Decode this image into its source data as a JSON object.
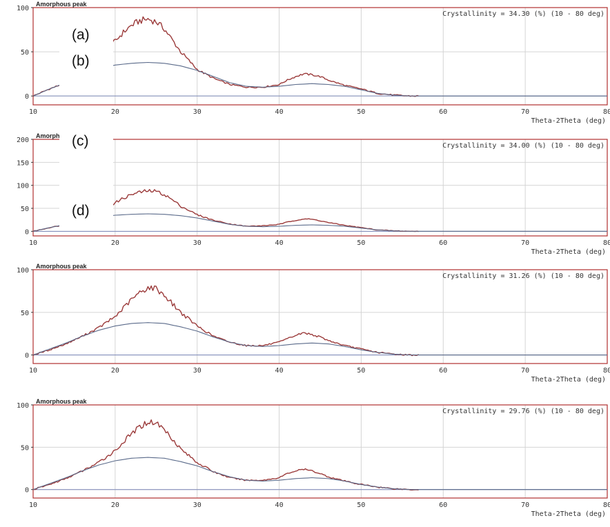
{
  "panel_labels": [
    "(a)",
    "(b)",
    "(c)",
    "(d)"
  ],
  "chart_data": [
    {
      "type": "line",
      "title": "Amorphous peak",
      "annotation": "Crystallinity = 34.30 (%) (10 - 80 deg)",
      "xlabel": "Theta-2Theta (deg)",
      "ylabel": "",
      "xlim": [
        10,
        80
      ],
      "ylim": [
        -10,
        100
      ],
      "x_ticks": [
        10,
        20,
        30,
        40,
        50,
        60,
        70,
        80
      ],
      "x_tick_labels": [
        "10",
        "20",
        "30",
        "40",
        "50",
        "60",
        "70",
        "80"
      ],
      "y_ticks": [
        0,
        50,
        100
      ],
      "grid": true,
      "colors": {
        "measured": "#9b3a3a",
        "fit": "#5a6a8a",
        "frame": "#b03030"
      },
      "series": [
        {
          "key": "measured",
          "x": [
            10,
            12,
            14,
            16,
            18,
            20,
            21,
            22,
            23,
            24,
            25,
            26,
            27,
            28,
            30,
            32,
            34,
            36,
            38,
            40,
            41,
            42,
            43,
            44,
            45,
            46,
            48,
            50,
            52,
            54,
            56,
            60,
            70,
            80
          ],
          "values": [
            0,
            8,
            15,
            28,
            45,
            62,
            72,
            80,
            85,
            87,
            84,
            76,
            63,
            50,
            30,
            20,
            13,
            10,
            10,
            13,
            18,
            22,
            25,
            24,
            22,
            18,
            12,
            8,
            3,
            1,
            0,
            0,
            0,
            0
          ]
        },
        {
          "key": "fit",
          "x": [
            10,
            12,
            14,
            16,
            18,
            20,
            22,
            24,
            26,
            28,
            30,
            32,
            34,
            36,
            38,
            40,
            42,
            44,
            46,
            48,
            50,
            52,
            54,
            56,
            60,
            70,
            80
          ],
          "values": [
            0,
            8,
            15,
            24,
            31,
            35,
            37,
            38,
            37,
            34,
            29,
            22,
            15,
            11,
            10,
            11,
            13,
            14,
            13,
            11,
            7,
            3,
            1,
            0,
            0,
            0,
            0
          ]
        }
      ]
    },
    {
      "type": "line",
      "title": "Amorphous peak",
      "annotation": "Crystallinity = 34.00 (%) (10 - 80 deg)",
      "xlabel": "Theta-2Theta (deg)",
      "ylabel": "",
      "xlim": [
        10,
        80
      ],
      "ylim": [
        -10,
        200
      ],
      "x_ticks": [
        10,
        20,
        30,
        40,
        50,
        60,
        70,
        80
      ],
      "x_tick_labels": [
        "10",
        "20",
        "30",
        "40",
        "50",
        "60",
        "70",
        "80"
      ],
      "y_ticks": [
        0,
        50,
        100,
        150,
        200
      ],
      "grid": true,
      "colors": {
        "measured": "#9b3a3a",
        "fit": "#5a6a8a",
        "frame": "#b03030"
      },
      "series": [
        {
          "key": "measured",
          "x": [
            10,
            12,
            14,
            16,
            18,
            20,
            21,
            22,
            23,
            24,
            25,
            26,
            27,
            28,
            30,
            32,
            34,
            36,
            38,
            40,
            41,
            42,
            43,
            44,
            45,
            46,
            48,
            50,
            52,
            54,
            56,
            60,
            70,
            80
          ],
          "values": [
            0,
            8,
            15,
            28,
            45,
            62,
            72,
            80,
            85,
            88,
            87,
            80,
            68,
            55,
            36,
            24,
            16,
            11,
            12,
            15,
            20,
            24,
            27,
            26,
            23,
            19,
            13,
            8,
            3,
            1,
            0,
            0,
            0,
            0
          ]
        },
        {
          "key": "fit",
          "x": [
            10,
            12,
            14,
            16,
            18,
            20,
            22,
            24,
            26,
            28,
            30,
            32,
            34,
            36,
            38,
            40,
            42,
            44,
            46,
            48,
            50,
            52,
            54,
            56,
            60,
            70,
            80
          ],
          "values": [
            0,
            8,
            15,
            24,
            31,
            35,
            37,
            38,
            37,
            34,
            29,
            22,
            15,
            11,
            10,
            11,
            13,
            14,
            13,
            11,
            7,
            3,
            1,
            0,
            0,
            0,
            0
          ]
        }
      ]
    },
    {
      "type": "line",
      "title": "Amorphous peak",
      "annotation": "Crystallinity = 31.26 (%) (10 - 80 deg)",
      "xlabel": "Theta-2Theta (deg)",
      "ylabel": "",
      "xlim": [
        10,
        80
      ],
      "ylim": [
        -10,
        100
      ],
      "x_ticks": [
        10,
        20,
        30,
        40,
        50,
        60,
        70,
        80
      ],
      "x_tick_labels": [
        "10",
        "20",
        "30",
        "40",
        "50",
        "60",
        "70",
        "80"
      ],
      "y_ticks": [
        0,
        50,
        100
      ],
      "grid": true,
      "colors": {
        "measured": "#9b3a3a",
        "fit": "#5a6a8a",
        "frame": "#b03030"
      },
      "series": [
        {
          "key": "measured",
          "x": [
            10,
            12,
            14,
            16,
            18,
            20,
            21,
            22,
            23,
            24,
            25,
            26,
            27,
            28,
            30,
            32,
            34,
            36,
            38,
            40,
            41,
            42,
            43,
            44,
            45,
            46,
            48,
            50,
            52,
            54,
            56,
            60,
            70,
            80
          ],
          "values": [
            0,
            6,
            13,
            22,
            32,
            45,
            55,
            65,
            73,
            79,
            78,
            70,
            60,
            50,
            34,
            22,
            15,
            11,
            11,
            15,
            19,
            23,
            26,
            24,
            21,
            17,
            11,
            7,
            3,
            1,
            0,
            0,
            0,
            0
          ]
        },
        {
          "key": "fit",
          "x": [
            10,
            12,
            14,
            16,
            18,
            20,
            22,
            24,
            26,
            28,
            30,
            32,
            34,
            36,
            38,
            40,
            42,
            44,
            46,
            48,
            50,
            52,
            54,
            56,
            60,
            70,
            80
          ],
          "values": [
            0,
            7,
            14,
            22,
            29,
            34,
            37,
            38,
            37,
            33,
            28,
            21,
            15,
            11,
            10,
            11,
            13,
            14,
            13,
            10,
            6,
            3,
            1,
            0,
            0,
            0,
            0
          ]
        }
      ]
    },
    {
      "type": "line",
      "title": "Amorphous peak",
      "annotation": "Crystallinity = 29.76 (%) (10 - 80 deg)",
      "xlabel": "Theta-2Theta (deg)",
      "ylabel": "",
      "xlim": [
        10,
        80
      ],
      "ylim": [
        -10,
        100
      ],
      "x_ticks": [
        10,
        20,
        30,
        40,
        50,
        60,
        70,
        80
      ],
      "x_tick_labels": [
        "10",
        "20",
        "30",
        "40",
        "50",
        "60",
        "70",
        "80"
      ],
      "y_ticks": [
        0,
        50,
        100
      ],
      "grid": true,
      "colors": {
        "measured": "#9b3a3a",
        "fit": "#5a6a8a",
        "frame": "#b03030"
      },
      "series": [
        {
          "key": "measured",
          "x": [
            10,
            12,
            14,
            16,
            18,
            20,
            21,
            22,
            23,
            24,
            25,
            26,
            27,
            28,
            30,
            32,
            34,
            36,
            38,
            40,
            41,
            42,
            43,
            44,
            45,
            46,
            48,
            50,
            52,
            54,
            56,
            60,
            70,
            80
          ],
          "values": [
            0,
            6,
            13,
            22,
            32,
            46,
            56,
            66,
            74,
            80,
            79,
            71,
            60,
            48,
            32,
            21,
            14,
            11,
            11,
            14,
            19,
            22,
            24,
            22,
            19,
            15,
            10,
            6,
            3,
            1,
            0,
            0,
            0,
            0
          ]
        },
        {
          "key": "fit",
          "x": [
            10,
            12,
            14,
            16,
            18,
            20,
            22,
            24,
            26,
            28,
            30,
            32,
            34,
            36,
            38,
            40,
            42,
            44,
            46,
            48,
            50,
            52,
            54,
            56,
            60,
            70,
            80
          ],
          "values": [
            0,
            7,
            14,
            22,
            29,
            34,
            37,
            38,
            37,
            33,
            28,
            21,
            15,
            11,
            10,
            11,
            13,
            14,
            13,
            10,
            6,
            3,
            1,
            0,
            0,
            0,
            0
          ]
        }
      ]
    }
  ]
}
